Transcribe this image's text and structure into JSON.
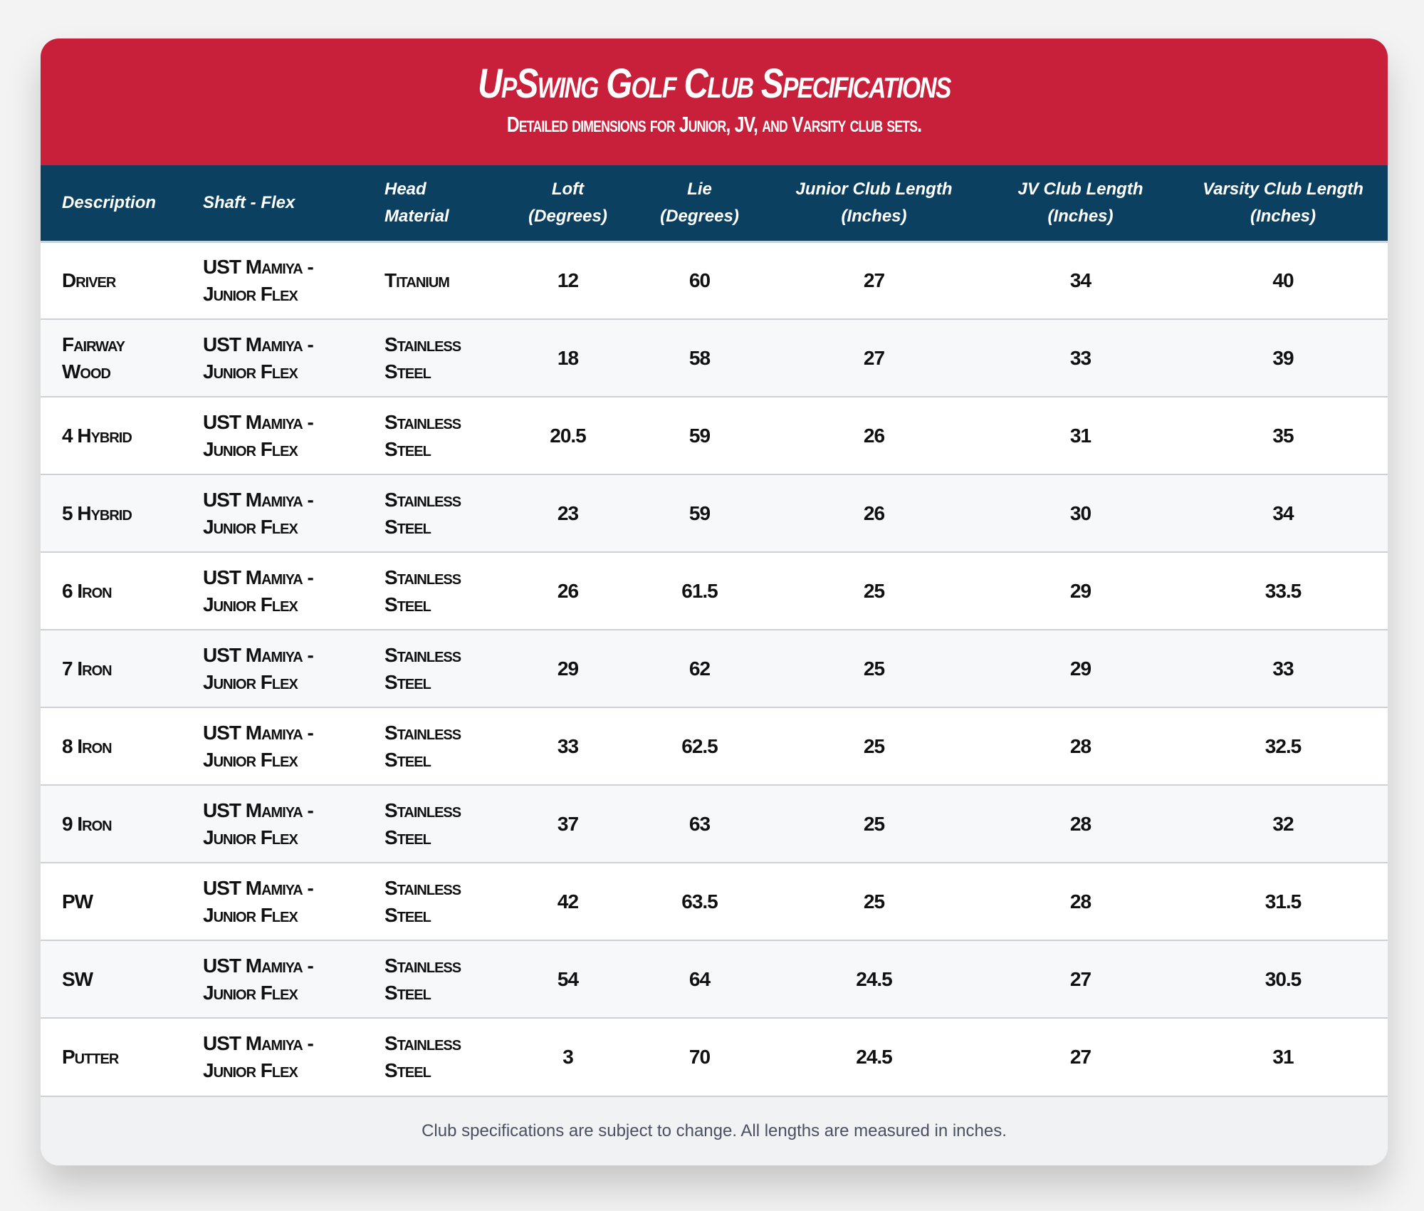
{
  "header": {
    "title": "UpSwing Golf Club Specifications",
    "subtitle": "Detailed dimensions for Junior, JV, and Varsity club sets."
  },
  "columns": [
    [
      "Description"
    ],
    [
      "Shaft - Flex"
    ],
    [
      "Head",
      "Material"
    ],
    [
      "Loft",
      "(Degrees)"
    ],
    [
      "Lie",
      "(Degrees)"
    ],
    [
      "Junior Club Length",
      "(Inches)"
    ],
    [
      "JV Club Length",
      "(Inches)"
    ],
    [
      "Varsity Club Length",
      "(Inches)"
    ]
  ],
  "rows": [
    [
      "Driver",
      "UST Mamiya - Junior Flex",
      "Titanium",
      "12",
      "60",
      "27",
      "34",
      "40"
    ],
    [
      "Fairway Wood",
      "UST Mamiya - Junior Flex",
      "Stainless Steel",
      "18",
      "58",
      "27",
      "33",
      "39"
    ],
    [
      "4 Hybrid",
      "UST Mamiya - Junior Flex",
      "Stainless Steel",
      "20.5",
      "59",
      "26",
      "31",
      "35"
    ],
    [
      "5 Hybrid",
      "UST Mamiya - Junior Flex",
      "Stainless Steel",
      "23",
      "59",
      "26",
      "30",
      "34"
    ],
    [
      "6 Iron",
      "UST Mamiya - Junior Flex",
      "Stainless Steel",
      "26",
      "61.5",
      "25",
      "29",
      "33.5"
    ],
    [
      "7 Iron",
      "UST Mamiya - Junior Flex",
      "Stainless Steel",
      "29",
      "62",
      "25",
      "29",
      "33"
    ],
    [
      "8 Iron",
      "UST Mamiya - Junior Flex",
      "Stainless Steel",
      "33",
      "62.5",
      "25",
      "28",
      "32.5"
    ],
    [
      "9 Iron",
      "UST Mamiya - Junior Flex",
      "Stainless Steel",
      "37",
      "63",
      "25",
      "28",
      "32"
    ],
    [
      "PW",
      "UST Mamiya - Junior Flex",
      "Stainless Steel",
      "42",
      "63.5",
      "25",
      "28",
      "31.5"
    ],
    [
      "SW",
      "UST Mamiya - Junior Flex",
      "Stainless Steel",
      "54",
      "64",
      "24.5",
      "27",
      "30.5"
    ],
    [
      "Putter",
      "UST Mamiya - Junior Flex",
      "Stainless Steel",
      "3",
      "70",
      "24.5",
      "27",
      "31"
    ]
  ],
  "footer": {
    "note": "Club specifications are subject to change. All lengths are measured in inches."
  },
  "colors": {
    "header_red": "#c8203a",
    "table_head_navy": "#0c4060"
  }
}
